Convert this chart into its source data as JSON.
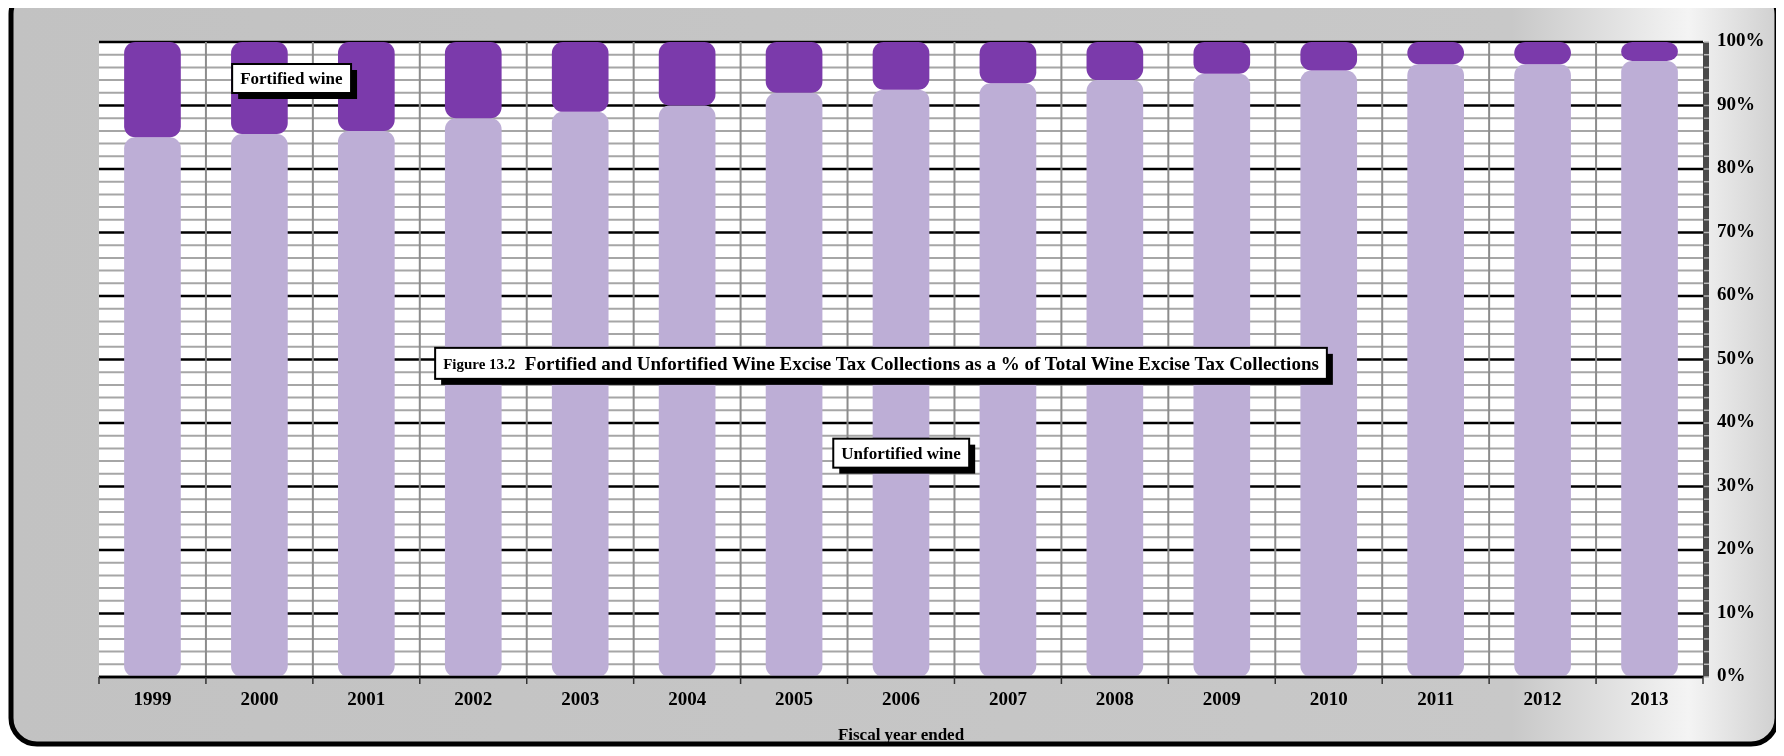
{
  "chart_data": {
    "type": "bar",
    "title": "Figure 13.2  Fortified and Unfortified Wine Excise Tax Collections as a % of Total Wine Excise Tax Collections",
    "xlabel": "Fiscal year ended",
    "categories": [
      "1999",
      "2000",
      "2001",
      "2002",
      "2003",
      "2004",
      "2005",
      "2006",
      "2007",
      "2008",
      "2009",
      "2010",
      "2011",
      "2012",
      "2013"
    ],
    "series": [
      {
        "name": "Unfortified wine",
        "color": "#bdaed6",
        "values": [
          85,
          85.5,
          86,
          88,
          89,
          90,
          92,
          92.5,
          93.5,
          94,
          95,
          95.5,
          96.5,
          96.5,
          97
        ]
      },
      {
        "name": "Fortified wine",
        "color": "#7b3aab",
        "values": [
          15,
          14.5,
          14,
          12,
          11,
          10,
          8,
          7.5,
          6.5,
          6,
          5,
          4.5,
          3.5,
          3.5,
          3
        ]
      }
    ],
    "stacked": true,
    "ylim": [
      0,
      100
    ],
    "yticks": [
      {
        "value": 0,
        "label": "0%"
      },
      {
        "value": 2,
        "label": null
      },
      {
        "value": 4,
        "label": null
      },
      {
        "value": 6,
        "label": null
      },
      {
        "value": 8,
        "label": null
      },
      {
        "value": 10,
        "label": "10%"
      },
      {
        "value": 12,
        "label": null
      },
      {
        "value": 14,
        "label": null
      },
      {
        "value": 16,
        "label": null
      },
      {
        "value": 18,
        "label": null
      },
      {
        "value": 20,
        "label": "20%"
      },
      {
        "value": 22,
        "label": null
      },
      {
        "value": 24,
        "label": null
      },
      {
        "value": 26,
        "label": null
      },
      {
        "value": 28,
        "label": null
      },
      {
        "value": 30,
        "label": "30%"
      },
      {
        "value": 32,
        "label": null
      },
      {
        "value": 34,
        "label": null
      },
      {
        "value": 36,
        "label": null
      },
      {
        "value": 38,
        "label": null
      },
      {
        "value": 40,
        "label": "40%"
      },
      {
        "value": 42,
        "label": null
      },
      {
        "value": 44,
        "label": null
      },
      {
        "value": 46,
        "label": null
      },
      {
        "value": 48,
        "label": null
      },
      {
        "value": 50,
        "label": "50%"
      },
      {
        "value": 52,
        "label": null
      },
      {
        "value": 54,
        "label": null
      },
      {
        "value": 56,
        "label": null
      },
      {
        "value": 58,
        "label": null
      },
      {
        "value": 60,
        "label": "60%"
      },
      {
        "value": 62,
        "label": null
      },
      {
        "value": 64,
        "label": null
      },
      {
        "value": 66,
        "label": null
      },
      {
        "value": 68,
        "label": null
      },
      {
        "value": 70,
        "label": "70%"
      },
      {
        "value": 72,
        "label": null
      },
      {
        "value": 74,
        "label": null
      },
      {
        "value": 76,
        "label": null
      },
      {
        "value": 78,
        "label": null
      },
      {
        "value": 80,
        "label": "80%"
      },
      {
        "value": 82,
        "label": null
      },
      {
        "value": 84,
        "label": null
      },
      {
        "value": 86,
        "label": null
      },
      {
        "value": 88,
        "label": null
      },
      {
        "value": 90,
        "label": "90%"
      },
      {
        "value": 92,
        "label": null
      },
      {
        "value": 94,
        "label": null
      },
      {
        "value": 96,
        "label": null
      },
      {
        "value": 98,
        "label": null
      },
      {
        "value": 100,
        "label": "100%"
      }
    ],
    "grid": true
  }
}
